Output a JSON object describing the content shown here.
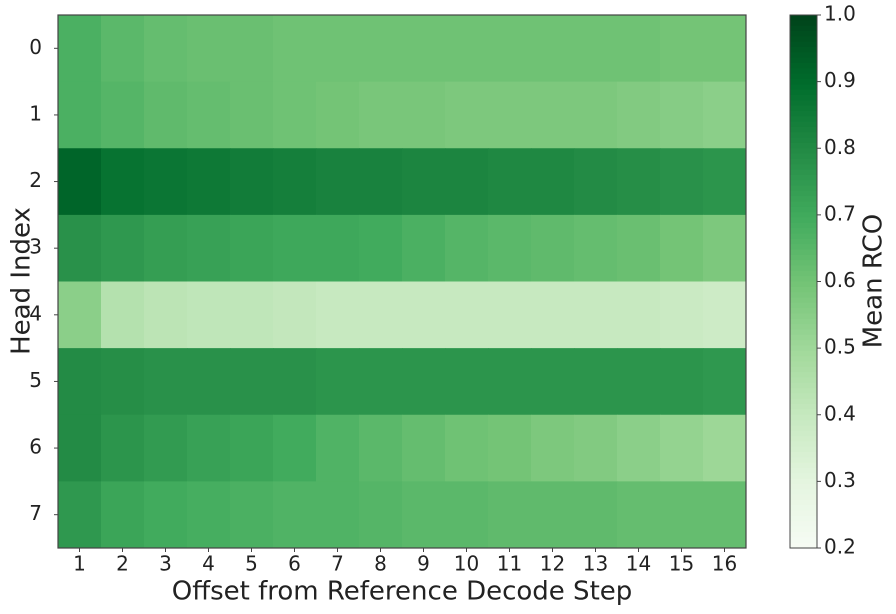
{
  "chart_data": {
    "type": "heatmap",
    "xlabel": "Offset from Reference Decode Step",
    "ylabel": "Head Index",
    "colorbar_label": "Mean RCO",
    "colormap": "Greens",
    "x": [
      1,
      2,
      3,
      4,
      5,
      6,
      7,
      8,
      9,
      10,
      11,
      12,
      13,
      14,
      15,
      16
    ],
    "y": [
      0,
      1,
      2,
      3,
      4,
      5,
      6,
      7
    ],
    "z": [
      [
        0.68,
        0.65,
        0.63,
        0.62,
        0.62,
        0.61,
        0.61,
        0.61,
        0.61,
        0.61,
        0.61,
        0.61,
        0.61,
        0.61,
        0.6,
        0.6
      ],
      [
        0.68,
        0.66,
        0.64,
        0.63,
        0.62,
        0.61,
        0.6,
        0.59,
        0.59,
        0.58,
        0.58,
        0.58,
        0.58,
        0.57,
        0.56,
        0.55
      ],
      [
        0.92,
        0.88,
        0.87,
        0.86,
        0.85,
        0.84,
        0.83,
        0.83,
        0.82,
        0.82,
        0.81,
        0.81,
        0.8,
        0.79,
        0.78,
        0.77
      ],
      [
        0.78,
        0.76,
        0.74,
        0.73,
        0.72,
        0.71,
        0.71,
        0.7,
        0.68,
        0.66,
        0.65,
        0.64,
        0.63,
        0.62,
        0.6,
        0.58
      ],
      [
        0.55,
        0.45,
        0.43,
        0.42,
        0.42,
        0.41,
        0.4,
        0.4,
        0.4,
        0.4,
        0.4,
        0.4,
        0.4,
        0.4,
        0.39,
        0.38
      ],
      [
        0.8,
        0.79,
        0.78,
        0.78,
        0.78,
        0.78,
        0.77,
        0.77,
        0.77,
        0.77,
        0.77,
        0.77,
        0.77,
        0.77,
        0.77,
        0.76
      ],
      [
        0.8,
        0.77,
        0.75,
        0.73,
        0.72,
        0.7,
        0.67,
        0.65,
        0.63,
        0.61,
        0.6,
        0.58,
        0.57,
        0.55,
        0.53,
        0.51
      ],
      [
        0.76,
        0.72,
        0.7,
        0.69,
        0.68,
        0.67,
        0.67,
        0.66,
        0.65,
        0.65,
        0.64,
        0.64,
        0.64,
        0.63,
        0.63,
        0.63
      ]
    ],
    "zlim": [
      0.2,
      {
        "value": 1,
        "label": "1.0"
      }
    ],
    "zticks": [
      0.2,
      0.3,
      0.4,
      0.5,
      0.6,
      0.7,
      0.8,
      0.9,
      {
        "value": 1,
        "label": "1.0"
      }
    ]
  }
}
